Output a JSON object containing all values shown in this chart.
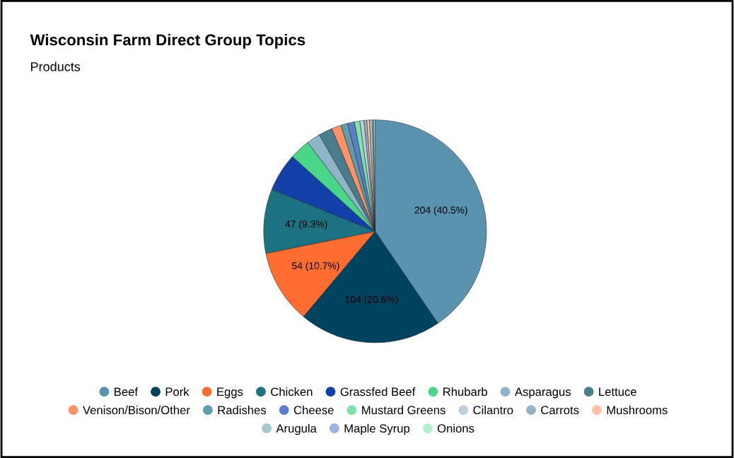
{
  "chart_data": {
    "type": "pie",
    "title": "Wisconsin Farm Direct Group Topics",
    "subtitle": "Products",
    "categories": [
      "Beef",
      "Pork",
      "Eggs",
      "Chicken",
      "Grassfed Beef",
      "Rhubarb",
      "Asparagus",
      "Lettuce",
      "Venison/Bison/Other",
      "Radishes",
      "Cheese",
      "Mustard Greens",
      "Cilantro",
      "Carrots",
      "Mushrooms",
      "Arugula",
      "Maple Syrup",
      "Onions"
    ],
    "values": [
      204,
      104,
      54,
      47,
      28,
      15,
      10,
      10,
      7,
      5,
      5,
      4,
      3,
      2,
      2,
      2,
      1,
      1
    ],
    "colors": [
      "#5a93b0",
      "#00435e",
      "#ff6d31",
      "#1d7282",
      "#1140a8",
      "#4ad688",
      "#8db4c8",
      "#4a7d8d",
      "#ff9266",
      "#5e9ea8",
      "#5a7fca",
      "#7de3ab",
      "#bad0dc",
      "#98b3c1",
      "#ffc0a5",
      "#a4c8cc",
      "#a0b3e0",
      "#b5f0d0"
    ],
    "value_labels": [
      "204 (40.5%)",
      "104 (20.6%)",
      "54 (10.7%)",
      "47 (9.3%)",
      null,
      null,
      null,
      null,
      null,
      null,
      null,
      null,
      null,
      null,
      null,
      null,
      null,
      null
    ],
    "legend": "bottom"
  }
}
